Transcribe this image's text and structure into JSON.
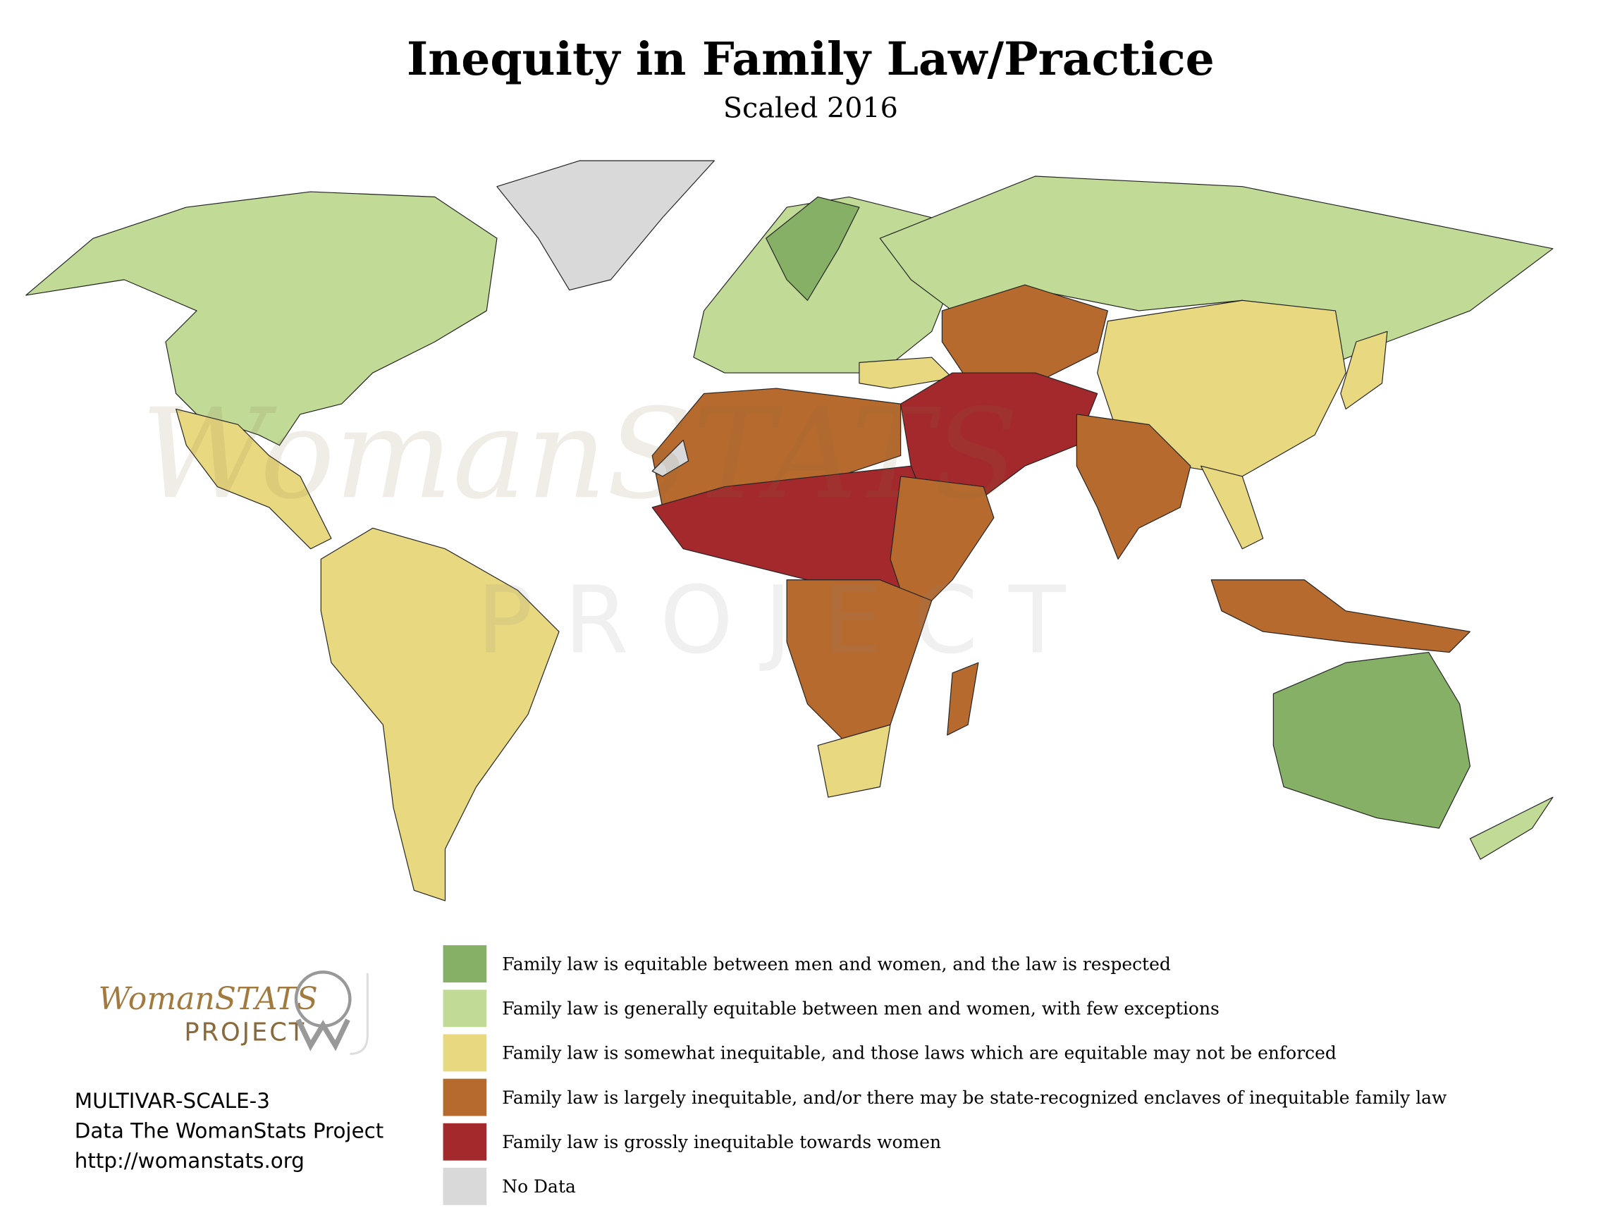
{
  "header": {
    "title": "Inequity in Family Law/Practice",
    "subtitle": "Scaled 2016"
  },
  "watermark": {
    "brand": "WomanSTATS",
    "sub": "PROJECT"
  },
  "legend": {
    "items": [
      {
        "color": "#86b066",
        "label": "Family law is equitable between men and women, and the law is respected"
      },
      {
        "color": "#c1db97",
        "label": "Family law is generally equitable between men and women, with few exceptions"
      },
      {
        "color": "#e8d981",
        "label": "Family law is somewhat inequitable, and those laws which are equitable may not be enforced"
      },
      {
        "color": "#b66a2e",
        "label": "Family law is largely inequitable, and/or there may be state-recognized enclaves of inequitable family law"
      },
      {
        "color": "#a3292d",
        "label": "Family law is grossly inequitable towards women"
      },
      {
        "color": "#d9d9d9",
        "label": "No Data"
      }
    ]
  },
  "logo": {
    "brand": "WomanSTATS",
    "sub": "PROJECT"
  },
  "footer": {
    "lines": [
      "MULTIVAR-SCALE-3",
      "Data The WomanStats Project",
      "http://womanstats.org"
    ]
  }
}
